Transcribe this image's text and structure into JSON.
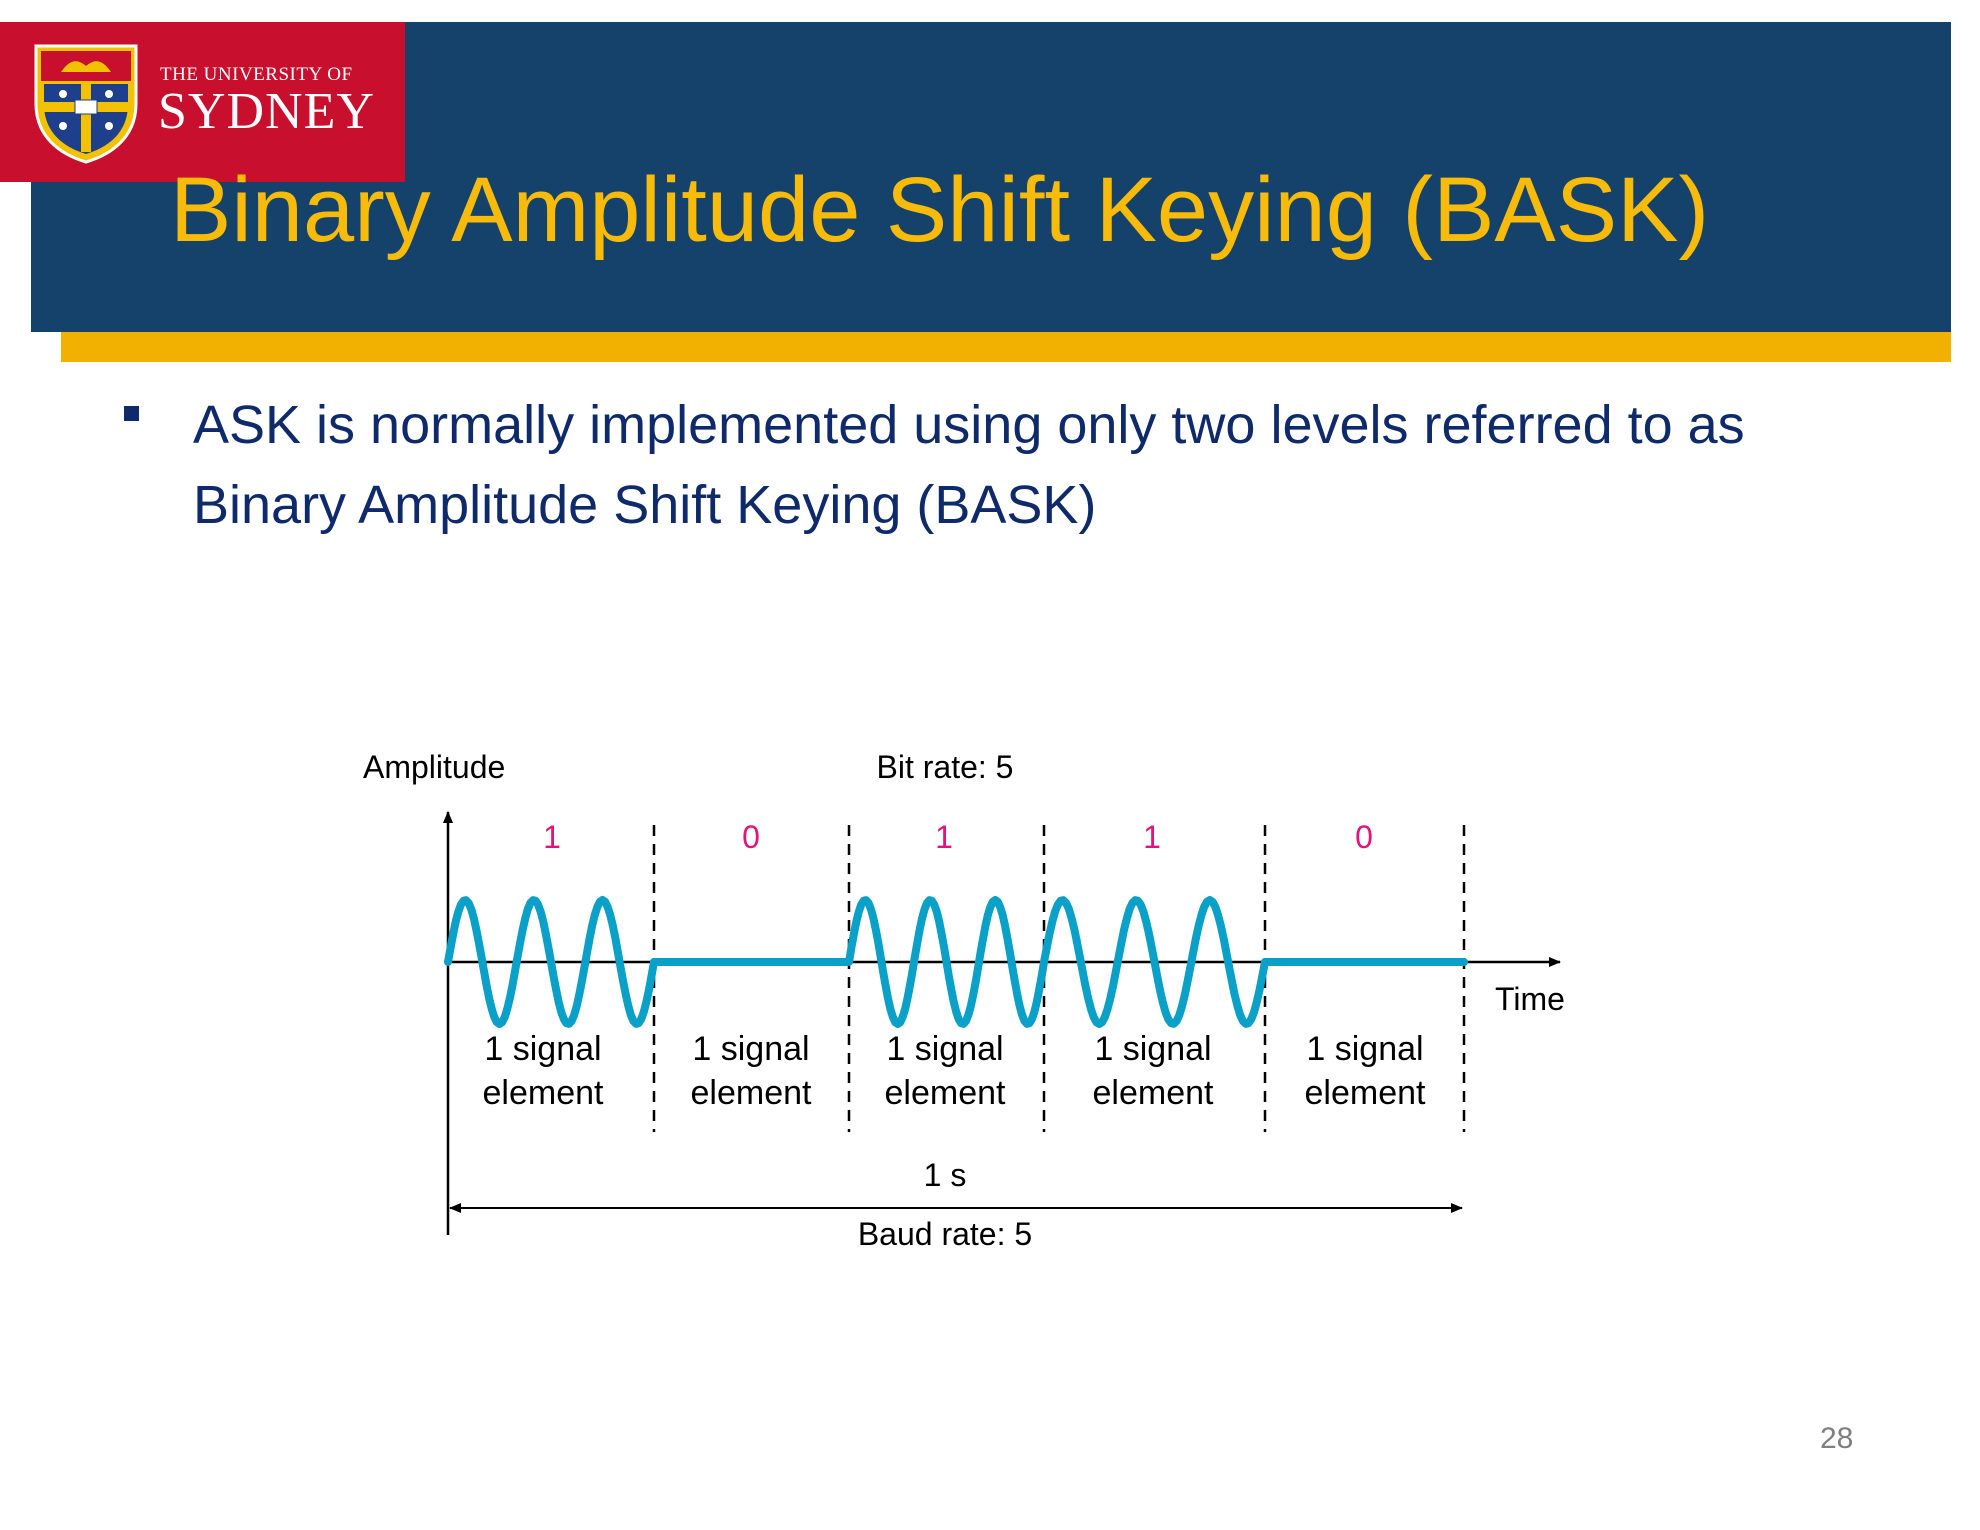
{
  "slide": {
    "logo": {
      "line1": "THE UNIVERSITY OF",
      "line2": "SYDNEY"
    },
    "title": "Binary Amplitude Shift Keying (BASK)",
    "bullet": "ASK is normally implemented using only two levels referred to as Binary Amplitude Shift Keying (BASK)",
    "page_number": "28"
  },
  "colors": {
    "navy": "#15426b",
    "gold": "#f2b000",
    "red": "#c8102e",
    "title_text": "#f8bb0a",
    "wave": "#0aa0c8",
    "bits": "#e0147a",
    "bullet_text": "#0f2a6b"
  },
  "diagram": {
    "y_axis_label": "Amplitude",
    "x_axis_label": "Time",
    "bit_rate_label": "Bit rate: 5",
    "duration_label": "1 s",
    "baud_rate_label": "Baud rate: 5",
    "bits": [
      "1",
      "0",
      "1",
      "1",
      "0"
    ],
    "element_line1": "1 signal",
    "element_line2": "element",
    "cycles_per_one_bit": 3
  }
}
